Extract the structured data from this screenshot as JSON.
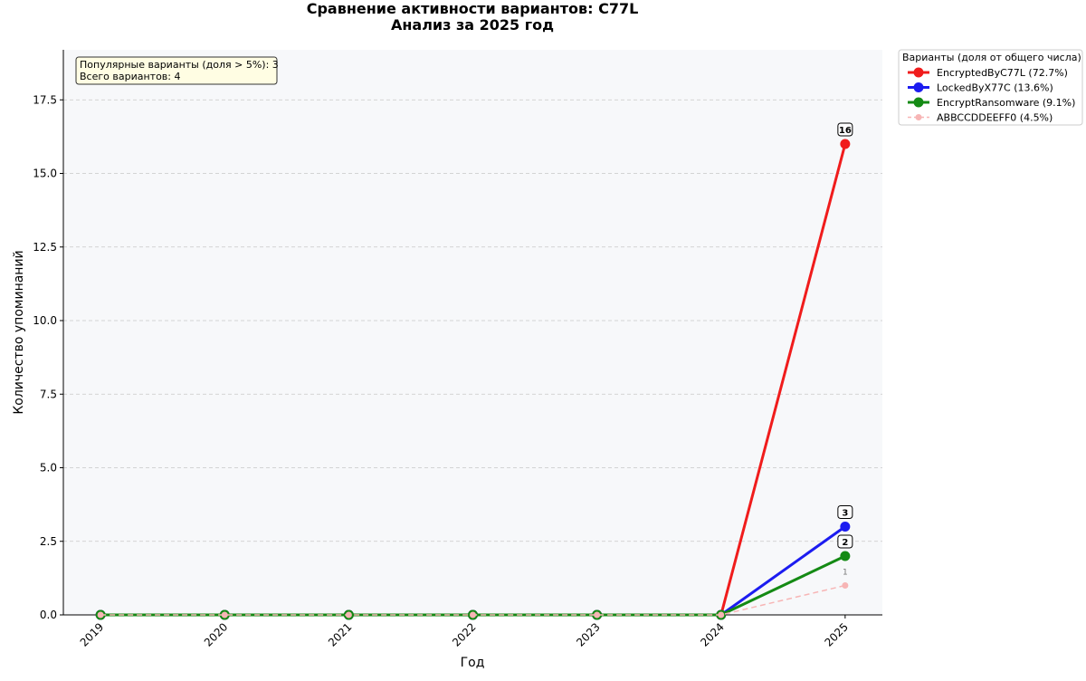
{
  "chart_data": {
    "type": "line",
    "title": "Сравнение активности вариантов: C77L",
    "subtitle": "Анализ за 2025 год",
    "x_label": "Год",
    "y_label": "Количество упоминаний",
    "x": [
      2019,
      2020,
      2021,
      2022,
      2023,
      2024,
      2025
    ],
    "xlim": [
      2018.7,
      2025.3
    ],
    "xticks": [
      2019,
      2020,
      2021,
      2022,
      2023,
      2024,
      2025
    ],
    "ylim": [
      0,
      19.2
    ],
    "yticks": [
      {
        "value": 0,
        "label": "0.0"
      },
      {
        "value": 2.5,
        "label": "2.5"
      },
      {
        "value": 5,
        "label": "5.0"
      },
      {
        "value": 7.5,
        "label": "7.5"
      },
      {
        "value": 10,
        "label": "10.0"
      },
      {
        "value": 12.5,
        "label": "12.5"
      },
      {
        "value": 15,
        "label": "15.0"
      },
      {
        "value": 17.5,
        "label": "17.5"
      }
    ],
    "grid": true,
    "legend_title": "Варианты (доля от общего числа)",
    "legend_position": "outside-right",
    "annotation": [
      "Популярные варианты (доля > 5%): 3",
      "Всего вариантов: 4"
    ],
    "series": [
      {
        "name": "EncryptedByC77L (72.7%)",
        "color": "#f01c1c",
        "linestyle": "solid",
        "values": [
          0,
          0,
          0,
          0,
          0,
          0,
          16
        ],
        "data_label": 16
      },
      {
        "name": "LockedByX77C (13.6%)",
        "color": "#1c1cf0",
        "linestyle": "solid",
        "values": [
          0,
          0,
          0,
          0,
          0,
          0,
          3
        ],
        "data_label": 3
      },
      {
        "name": "EncryptRansomware (9.1%)",
        "color": "#148a14",
        "linestyle": "solid",
        "values": [
          0,
          0,
          0,
          0,
          0,
          0,
          2
        ],
        "data_label": 2
      },
      {
        "name": "ABBCCDDEEFF0 (4.5%)",
        "color": "#f7b5b5",
        "linestyle": "dashed",
        "values": [
          0,
          0,
          0,
          0,
          0,
          0,
          1
        ],
        "data_label": 1
      }
    ]
  }
}
